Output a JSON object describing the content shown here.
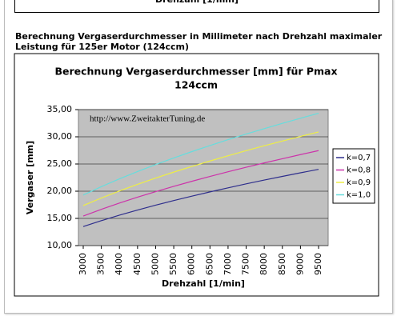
{
  "top_fragment": "Drehzahl [1/min]",
  "heading": "Berechnung Vergaserdurchmesser in Millimeter nach Drehzahl maximaler Leistung für 125er Motor (124ccm)",
  "chart_data": {
    "type": "line",
    "title": "Berechnung Vergaserdurchmesser [mm] für Pmax",
    "subtitle": "124ccm",
    "annotation": "http://www.ZweitakterTuning.de",
    "x_label": "Drehzahl [1/min]",
    "y_label": "Vergaser [mm]",
    "x": [
      3000,
      3500,
      4000,
      4500,
      5000,
      5500,
      6000,
      6500,
      7000,
      7500,
      8000,
      8500,
      9000,
      9500
    ],
    "xlim": [
      3000,
      9500
    ],
    "xticks": [
      3000,
      3500,
      4000,
      4500,
      5000,
      5500,
      6000,
      6500,
      7000,
      7500,
      8000,
      8500,
      9000,
      9500
    ],
    "ylim": [
      10,
      35
    ],
    "yticks": [
      {
        "value": 10,
        "label": "10,00"
      },
      {
        "value": 15,
        "label": "15,00"
      },
      {
        "value": 20,
        "label": "20,00"
      },
      {
        "value": 25,
        "label": "25,00"
      },
      {
        "value": 30,
        "label": "30,00"
      },
      {
        "value": 35,
        "label": "35,00"
      }
    ],
    "grid": true,
    "legend": "right",
    "series": [
      {
        "name": "k=0,7",
        "color": "#2e2e8c",
        "values": [
          13.5,
          14.58,
          15.59,
          16.53,
          17.43,
          18.28,
          19.09,
          19.87,
          20.62,
          21.35,
          22.05,
          22.72,
          23.38,
          24.02
        ]
      },
      {
        "name": "k=0,8",
        "color": "#cc33aa",
        "values": [
          15.43,
          16.67,
          17.82,
          18.9,
          19.92,
          20.89,
          21.82,
          22.71,
          23.57,
          24.4,
          25.2,
          25.97,
          26.73,
          27.46
        ]
      },
      {
        "name": "k=0,9",
        "color": "#eeee44",
        "values": [
          17.36,
          18.75,
          20.05,
          21.26,
          22.41,
          23.51,
          24.55,
          25.55,
          26.52,
          27.45,
          28.35,
          29.22,
          30.07,
          30.89
        ]
      },
      {
        "name": "k=1,0",
        "color": "#66dddd",
        "values": [
          19.29,
          20.84,
          22.27,
          23.62,
          24.9,
          26.12,
          27.28,
          28.39,
          29.47,
          30.5,
          31.5,
          32.47,
          33.41,
          34.33
        ]
      }
    ]
  }
}
